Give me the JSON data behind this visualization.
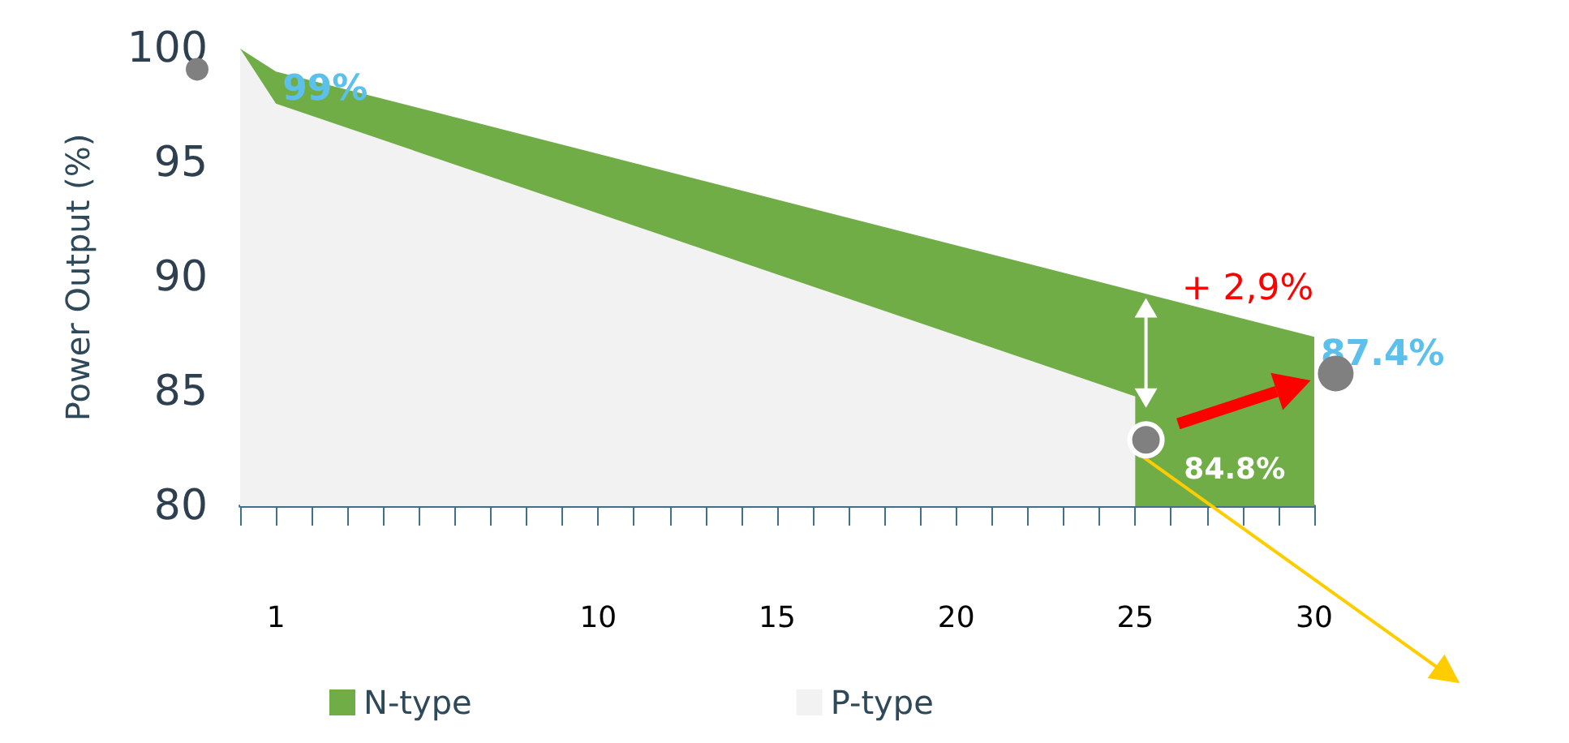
{
  "chart_data": {
    "type": "area",
    "ylabel": "Power Output (%)",
    "series": [
      {
        "name": "N-type",
        "color": "#70ad47",
        "x": [
          0,
          1,
          30
        ],
        "values": [
          100,
          99,
          87.4
        ],
        "value_labels": [
          null,
          "99%",
          "87.4%"
        ]
      },
      {
        "name": "P-type",
        "color": "#f2f2f2",
        "x": [
          0,
          1,
          25
        ],
        "values": [
          100,
          97.6,
          84.8
        ],
        "value_labels": [
          null,
          null,
          "84.8%"
        ]
      }
    ],
    "annotations": [
      "+ 2,9%"
    ],
    "xlim": [
      0,
      30
    ],
    "xticks": [
      {
        "value": 0,
        "label": null
      },
      {
        "value": 1,
        "label": "1"
      },
      {
        "value": 2,
        "label": null
      },
      {
        "value": 3,
        "label": null
      },
      {
        "value": 4,
        "label": null
      },
      {
        "value": 5,
        "label": null
      },
      {
        "value": 6,
        "label": null
      },
      {
        "value": 7,
        "label": null
      },
      {
        "value": 8,
        "label": null
      },
      {
        "value": 9,
        "label": null
      },
      {
        "value": 10,
        "label": "10"
      },
      {
        "value": 11,
        "label": null
      },
      {
        "value": 12,
        "label": null
      },
      {
        "value": 13,
        "label": null
      },
      {
        "value": 14,
        "label": null
      },
      {
        "value": 15,
        "label": "15"
      },
      {
        "value": 16,
        "label": null
      },
      {
        "value": 17,
        "label": null
      },
      {
        "value": 18,
        "label": null
      },
      {
        "value": 19,
        "label": null
      },
      {
        "value": 20,
        "label": "20"
      },
      {
        "value": 21,
        "label": null
      },
      {
        "value": 22,
        "label": null
      },
      {
        "value": 23,
        "label": null
      },
      {
        "value": 24,
        "label": null
      },
      {
        "value": 25,
        "label": "25"
      },
      {
        "value": 26,
        "label": null
      },
      {
        "value": 27,
        "label": null
      },
      {
        "value": 28,
        "label": null
      },
      {
        "value": 29,
        "label": null
      },
      {
        "value": 30,
        "label": "30"
      }
    ],
    "ylim": [
      80,
      100
    ],
    "yticks": [
      80,
      85,
      90,
      95,
      100
    ],
    "grid": false,
    "legend": "bottom"
  }
}
